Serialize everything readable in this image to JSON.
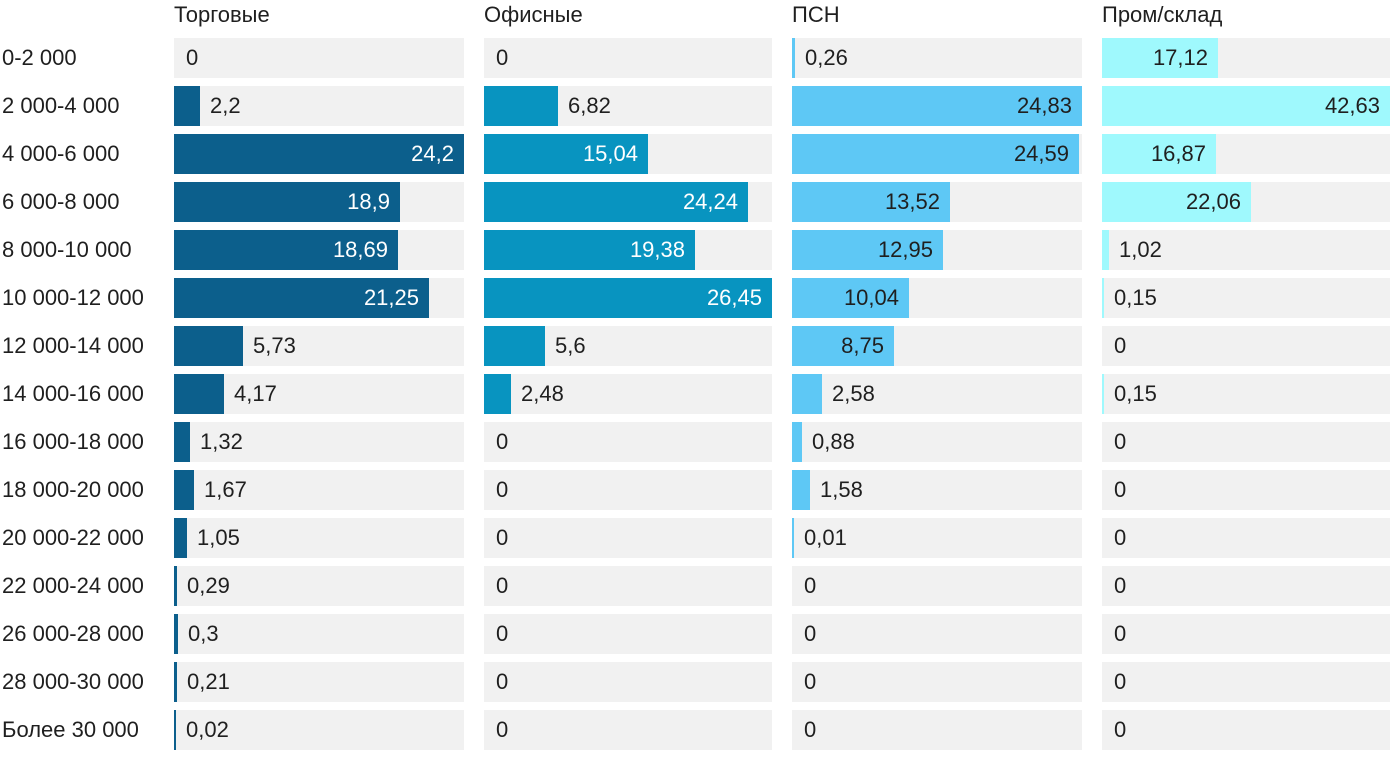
{
  "chart_data": {
    "type": "bar",
    "orientation": "horizontal",
    "layout": "small-multiples",
    "categories": [
      "0-2 000",
      "2 000-4 000",
      "4 000-6 000",
      "6 000-8 000",
      "8 000-10 000",
      "10 000-12 000",
      "12 000-14 000",
      "14 000-16 000",
      "16 000-18 000",
      "18 000-20 000",
      "20 000-22 000",
      "22 000-24 000",
      "26 000-28 000",
      "28 000-30 000",
      "Более 30 000"
    ],
    "series": [
      {
        "name": "Торговые",
        "color": "#0c5f8c",
        "max": 24.2,
        "values": [
          0,
          2.2,
          24.2,
          18.9,
          18.69,
          21.25,
          5.73,
          4.17,
          1.32,
          1.67,
          1.05,
          0.29,
          0.3,
          0.21,
          0.02
        ],
        "labels": [
          "0",
          "2,2",
          "24,2",
          "18,9",
          "18,69",
          "21,25",
          "5,73",
          "4,17",
          "1,32",
          "1,67",
          "1,05",
          "0,29",
          "0,3",
          "0,21",
          "0,02"
        ]
      },
      {
        "name": "Офисные",
        "color": "#0894c0",
        "max": 26.45,
        "values": [
          0,
          6.82,
          15.04,
          24.24,
          19.38,
          26.45,
          5.6,
          2.48,
          0,
          0,
          0,
          0,
          0,
          0,
          0
        ],
        "labels": [
          "0",
          "6,82",
          "15,04",
          "24,24",
          "19,38",
          "26,45",
          "5,6",
          "2,48",
          "0",
          "0",
          "0",
          "0",
          "0",
          "0",
          "0"
        ]
      },
      {
        "name": "ПСН",
        "color": "#5ec8f5",
        "max": 24.83,
        "values": [
          0.26,
          24.83,
          24.59,
          13.52,
          12.95,
          10.04,
          8.75,
          2.58,
          0.88,
          1.58,
          0.01,
          0,
          0,
          0,
          0
        ],
        "labels": [
          "0,26",
          "24,83",
          "24,59",
          "13,52",
          "12,95",
          "10,04",
          "8,75",
          "2,58",
          "0,88",
          "1,58",
          "0,01",
          "0",
          "0",
          "0",
          "0"
        ]
      },
      {
        "name": "Пром/склад",
        "color": "#9ff9fd",
        "max": 42.63,
        "values": [
          17.12,
          42.63,
          16.87,
          22.06,
          1.02,
          0.15,
          0,
          0.15,
          0,
          0,
          0,
          0,
          0,
          0,
          0
        ],
        "labels": [
          "17,12",
          "42,63",
          "16,87",
          "22,06",
          "1,02",
          "0,15",
          "0",
          "0,15",
          "0",
          "0",
          "0",
          "0",
          "0",
          "0",
          "0"
        ]
      }
    ],
    "colors": {
      "track": "#f1f1f1",
      "label_on_dark": "#ffffff",
      "label_on_light": "#1f1f1f"
    }
  }
}
